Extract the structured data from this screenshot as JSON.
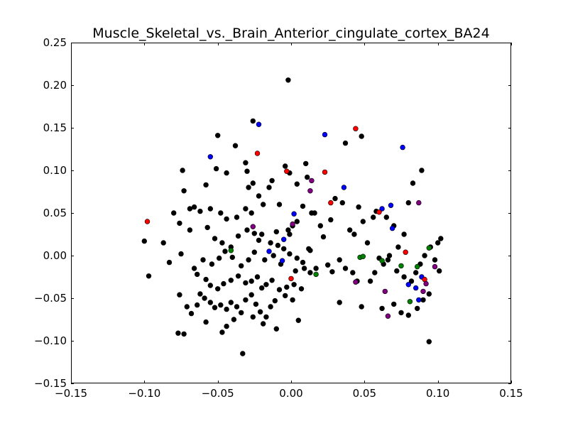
{
  "chart_data": {
    "type": "scatter",
    "title": "Muscle_Skeletal_vs._Brain_Anterior_cingulate_cortex_BA24",
    "xlabel": "",
    "ylabel": "",
    "xlim": [
      -0.15,
      0.15
    ],
    "ylim": [
      -0.15,
      0.25
    ],
    "xticks": [
      -0.15,
      -0.1,
      -0.05,
      0.0,
      0.05,
      0.1,
      0.15
    ],
    "xtick_labels": [
      "−0.15",
      "−0.10",
      "−0.05",
      "0.00",
      "0.05",
      "0.10",
      "0.15"
    ],
    "yticks": [
      -0.15,
      -0.1,
      -0.05,
      0.0,
      0.05,
      0.1,
      0.15,
      0.2,
      0.25
    ],
    "ytick_labels": [
      "−0.15",
      "−0.10",
      "−0.05",
      "0.00",
      "0.05",
      "0.10",
      "0.15",
      "0.20",
      "0.25"
    ],
    "grid": false,
    "series": [
      {
        "color": "#000000",
        "points": [
          [
            -0.002,
            0.206
          ],
          [
            -0.026,
            0.158
          ],
          [
            -0.05,
            0.141
          ],
          [
            -0.038,
            0.129
          ],
          [
            -0.031,
            0.109
          ],
          [
            -0.074,
            0.1
          ],
          [
            -0.051,
            0.102
          ],
          [
            -0.044,
            0.097
          ],
          [
            -0.03,
            0.099
          ],
          [
            -0.026,
            0.085
          ],
          [
            -0.058,
            0.083
          ],
          [
            -0.073,
            0.076
          ],
          [
            -0.029,
            0.08
          ],
          [
            -0.022,
            0.07
          ],
          [
            -0.013,
            0.088
          ],
          [
            -0.015,
            0.08
          ],
          [
            -0.004,
            0.105
          ],
          [
            -0.001,
            0.097
          ],
          [
            0.01,
            0.108
          ],
          [
            0.011,
            0.092
          ],
          [
            0.004,
            0.084
          ],
          [
            -0.019,
            0.06
          ],
          [
            -0.008,
            0.06
          ],
          [
            0.014,
            0.05
          ],
          [
            0.004,
            0.04
          ],
          [
            0.001,
            0.035
          ],
          [
            -0.002,
            0.03
          ],
          [
            -0.001,
            0.025
          ],
          [
            -0.01,
            0.028
          ],
          [
            -0.02,
            0.025
          ],
          [
            -0.027,
            0.05
          ],
          [
            -0.031,
            0.055
          ],
          [
            -0.037,
            0.045
          ],
          [
            -0.044,
            0.043
          ],
          [
            -0.048,
            0.05
          ],
          [
            -0.055,
            0.055
          ],
          [
            -0.062,
            0.052
          ],
          [
            -0.066,
            0.057
          ],
          [
            -0.069,
            0.055
          ],
          [
            -0.076,
            0.038
          ],
          [
            -0.08,
            0.05
          ],
          [
            -0.087,
            0.015
          ],
          [
            -0.069,
            0.03
          ],
          [
            -0.057,
            0.033
          ],
          [
            -0.052,
            0.02
          ],
          [
            -0.047,
            0.015
          ],
          [
            -0.041,
            0.01
          ],
          [
            -0.036,
            0.023
          ],
          [
            -0.03,
            0.03
          ],
          [
            -0.025,
            0.026
          ],
          [
            -0.022,
            0.018
          ],
          [
            -0.014,
            0.015
          ],
          [
            -0.009,
            0.012
          ],
          [
            -0.005,
            0.008
          ],
          [
            -0.001,
            0.002
          ],
          [
            0.004,
            -0.003
          ],
          [
            0.008,
            -0.008
          ],
          [
            -0.1,
            0.017
          ],
          [
            -0.097,
            -0.024
          ],
          [
            -0.083,
            -0.008
          ],
          [
            -0.075,
            0.002
          ],
          [
            -0.064,
            -0.022
          ],
          [
            -0.058,
            -0.028
          ],
          [
            -0.055,
            -0.035
          ],
          [
            -0.05,
            -0.039
          ],
          [
            -0.046,
            -0.033
          ],
          [
            -0.041,
            -0.029
          ],
          [
            -0.036,
            -0.024
          ],
          [
            -0.031,
            -0.032
          ],
          [
            -0.027,
            -0.03
          ],
          [
            -0.023,
            -0.025
          ],
          [
            -0.02,
            -0.038
          ],
          [
            -0.017,
            -0.034
          ],
          [
            -0.013,
            -0.029
          ],
          [
            -0.008,
            -0.04
          ],
          [
            -0.003,
            -0.037
          ],
          [
            0.002,
            -0.034
          ],
          [
            0.007,
            -0.039
          ],
          [
            -0.062,
            -0.045
          ],
          [
            -0.059,
            -0.05
          ],
          [
            -0.055,
            -0.055
          ],
          [
            -0.052,
            -0.061
          ],
          [
            -0.048,
            -0.058
          ],
          [
            -0.044,
            -0.063
          ],
          [
            -0.041,
            -0.055
          ],
          [
            -0.037,
            -0.06
          ],
          [
            -0.034,
            -0.067
          ],
          [
            -0.031,
            -0.052
          ],
          [
            -0.027,
            -0.046
          ],
          [
            -0.024,
            -0.057
          ],
          [
            -0.021,
            -0.066
          ],
          [
            -0.017,
            -0.072
          ],
          [
            -0.014,
            -0.06
          ],
          [
            -0.011,
            -0.053
          ],
          [
            -0.004,
            -0.047
          ],
          [
            0.001,
            -0.052
          ],
          [
            0.005,
            -0.076
          ],
          [
            -0.073,
            -0.092
          ],
          [
            -0.077,
            -0.091
          ],
          [
            -0.047,
            -0.09
          ],
          [
            -0.033,
            -0.115
          ],
          [
            -0.01,
            -0.086
          ],
          [
            -0.019,
            -0.08
          ],
          [
            -0.026,
            -0.072
          ],
          [
            -0.039,
            -0.075
          ],
          [
            -0.044,
            -0.083
          ],
          [
            -0.058,
            -0.078
          ],
          [
            -0.068,
            -0.068
          ],
          [
            -0.064,
            -0.058
          ],
          [
            -0.071,
            -0.06
          ],
          [
            -0.076,
            -0.046
          ],
          [
            -0.066,
            -0.015
          ],
          [
            -0.06,
            -0.005
          ],
          [
            -0.054,
            -0.01
          ],
          [
            -0.049,
            -0.003
          ],
          [
            -0.045,
            0.005
          ],
          [
            -0.04,
            -0.002
          ],
          [
            -0.034,
            -0.012
          ],
          [
            -0.029,
            -0.005
          ],
          [
            -0.025,
            0.004
          ],
          [
            -0.018,
            -0.005
          ],
          [
            -0.012,
            0.0
          ],
          [
            -0.007,
            -0.01
          ],
          [
            0.003,
            -0.018
          ],
          [
            0.009,
            -0.015
          ],
          [
            0.013,
            -0.02
          ],
          [
            0.017,
            -0.015
          ],
          [
            0.012,
            0.008
          ],
          [
            0.022,
            0.022
          ],
          [
            0.027,
            0.042
          ],
          [
            0.03,
            0.067
          ],
          [
            0.035,
            0.062
          ],
          [
            0.037,
            0.132
          ],
          [
            0.048,
            0.14
          ],
          [
            0.046,
            0.057
          ],
          [
            0.056,
            0.045
          ],
          [
            0.04,
            0.03
          ],
          [
            0.033,
            -0.005
          ],
          [
            0.037,
            -0.015
          ],
          [
            0.042,
            -0.02
          ],
          [
            0.045,
            -0.03
          ],
          [
            0.033,
            -0.055
          ],
          [
            0.048,
            -0.06
          ],
          [
            0.054,
            -0.03
          ],
          [
            0.057,
            -0.02
          ],
          [
            0.063,
            -0.01
          ],
          [
            0.066,
            -0.005
          ],
          [
            0.072,
            -0.018
          ],
          [
            0.077,
            -0.025
          ],
          [
            0.082,
            -0.03
          ],
          [
            0.085,
            -0.02
          ],
          [
            0.088,
            -0.01
          ],
          [
            0.091,
            0.0
          ],
          [
            0.095,
            0.01
          ],
          [
            0.098,
            -0.005
          ],
          [
            0.1,
            0.015
          ],
          [
            0.102,
            0.02
          ],
          [
            0.101,
            -0.018
          ],
          [
            0.094,
            -0.045
          ],
          [
            0.09,
            -0.052
          ],
          [
            0.086,
            -0.062
          ],
          [
            0.08,
            -0.07
          ],
          [
            0.075,
            -0.067
          ],
          [
            0.07,
            -0.057
          ],
          [
            0.062,
            -0.062
          ],
          [
            0.094,
            -0.101
          ],
          [
            0.077,
            0.025
          ],
          [
            0.08,
            0.062
          ],
          [
            0.089,
            0.1
          ],
          [
            0.083,
            0.085
          ],
          [
            0.07,
            0.035
          ],
          [
            0.065,
            0.045
          ],
          [
            0.058,
            0.052
          ],
          [
            0.049,
            0.04
          ],
          [
            0.043,
            0.025
          ],
          [
            0.052,
            0.015
          ],
          [
            0.06,
            -0.003
          ],
          [
            0.067,
            0.0
          ],
          [
            0.073,
            0.01
          ],
          [
            0.02,
            0.035
          ],
          [
            0.016,
            0.05
          ],
          [
            0.008,
            0.058
          ],
          [
            0.013,
            0.006
          ],
          [
            0.025,
            -0.011
          ],
          [
            0.028,
            -0.019
          ]
        ]
      },
      {
        "color": "#0000ff",
        "points": [
          [
            -0.022,
            0.154
          ],
          [
            -0.055,
            0.116
          ],
          [
            0.023,
            0.142
          ],
          [
            0.076,
            0.127
          ],
          [
            0.036,
            0.08
          ],
          [
            0.068,
            0.059
          ],
          [
            0.062,
            0.055
          ],
          [
            0.002,
            0.049
          ],
          [
            0.069,
            0.032
          ],
          [
            -0.005,
            0.019
          ],
          [
            -0.015,
            0.005
          ],
          [
            -0.006,
            -0.006
          ],
          [
            0.08,
            -0.034
          ],
          [
            0.085,
            -0.038
          ],
          [
            0.089,
            -0.025
          ],
          [
            0.087,
            -0.052
          ]
        ]
      },
      {
        "color": "#ff0000",
        "points": [
          [
            -0.098,
            0.04
          ],
          [
            -0.023,
            0.12
          ],
          [
            -0.003,
            0.099
          ],
          [
            0.023,
            0.098
          ],
          [
            0.044,
            0.149
          ],
          [
            0.027,
            0.062
          ],
          [
            0.06,
            0.051
          ],
          [
            0.078,
            0.004
          ],
          [
            0.0,
            -0.027
          ],
          [
            0.091,
            -0.028
          ]
        ]
      },
      {
        "color": "#800080",
        "points": [
          [
            0.014,
            0.088
          ],
          [
            0.013,
            0.076
          ],
          [
            -0.026,
            0.034
          ],
          [
            0.001,
            0.037
          ],
          [
            0.044,
            -0.031
          ],
          [
            0.064,
            -0.042
          ],
          [
            0.066,
            -0.071
          ],
          [
            0.087,
            0.062
          ],
          [
            0.098,
            -0.013
          ],
          [
            0.09,
            -0.042
          ],
          [
            0.092,
            -0.033
          ]
        ]
      },
      {
        "color": "#008000",
        "points": [
          [
            -0.041,
            0.006
          ],
          [
            0.047,
            -0.002
          ],
          [
            0.049,
            -0.001
          ],
          [
            0.062,
            -0.006
          ],
          [
            0.075,
            -0.012
          ],
          [
            0.094,
            0.009
          ],
          [
            0.081,
            -0.054
          ],
          [
            0.017,
            -0.022
          ],
          [
            0.086,
            -0.013
          ]
        ]
      }
    ]
  }
}
